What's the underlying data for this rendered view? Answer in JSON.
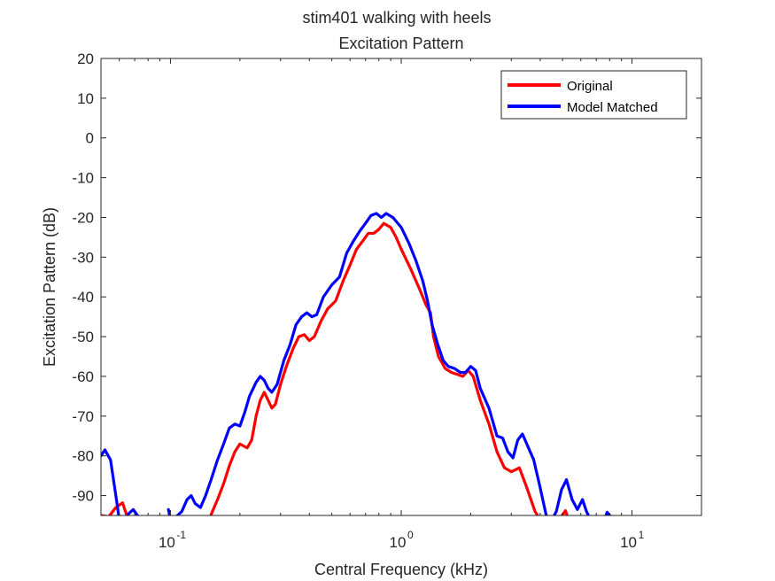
{
  "chart_data": {
    "type": "line",
    "title": "stim401 walking with heels",
    "subtitle": "Excitation Pattern",
    "xlabel": "Central Frequency (kHz)",
    "ylabel": "Excitation Pattern (dB)",
    "x_scale": "log",
    "xlim": [
      0.05,
      20
    ],
    "ylim": [
      -95,
      20
    ],
    "x_ticks": [
      {
        "value": 0.1,
        "base": "10",
        "exp": "-1"
      },
      {
        "value": 1,
        "base": "10",
        "exp": "0"
      },
      {
        "value": 10,
        "base": "10",
        "exp": "1"
      }
    ],
    "y_ticks": [
      20,
      10,
      0,
      -10,
      -20,
      -30,
      -40,
      -50,
      -60,
      -70,
      -80,
      -90
    ],
    "legend_position": "top-right",
    "grid": false,
    "series": [
      {
        "name": "Original",
        "color": "#ff0000",
        "segments": [
          [
            [
              0.05,
              -95.0
            ],
            [
              0.054,
              -95.3
            ],
            [
              0.058,
              -93.0
            ],
            [
              0.062,
              -91.8
            ],
            [
              0.066,
              -96.5
            ]
          ],
          [
            [
              0.145,
              -97.0
            ],
            [
              0.152,
              -94.0
            ],
            [
              0.16,
              -91.0
            ],
            [
              0.17,
              -87.0
            ],
            [
              0.18,
              -82.5
            ],
            [
              0.19,
              -79.0
            ],
            [
              0.2,
              -77.0
            ],
            [
              0.215,
              -78.0
            ],
            [
              0.225,
              -76.0
            ],
            [
              0.235,
              -70.0
            ],
            [
              0.245,
              -66.0
            ],
            [
              0.255,
              -64.0
            ],
            [
              0.265,
              -66.0
            ],
            [
              0.275,
              -68.0
            ],
            [
              0.285,
              -67.0
            ],
            [
              0.3,
              -62.0
            ],
            [
              0.32,
              -57.0
            ],
            [
              0.34,
              -53.0
            ],
            [
              0.36,
              -50.0
            ],
            [
              0.38,
              -49.5
            ],
            [
              0.4,
              -51.0
            ],
            [
              0.42,
              -50.0
            ],
            [
              0.45,
              -46.0
            ],
            [
              0.48,
              -43.0
            ],
            [
              0.52,
              -41.0
            ],
            [
              0.56,
              -36.0
            ],
            [
              0.6,
              -32.0
            ],
            [
              0.64,
              -28.0
            ],
            [
              0.68,
              -26.0
            ],
            [
              0.72,
              -24.0
            ],
            [
              0.76,
              -24.0
            ],
            [
              0.8,
              -23.0
            ],
            [
              0.84,
              -21.5
            ],
            [
              0.9,
              -22.5
            ],
            [
              0.95,
              -25.0
            ],
            [
              1.0,
              -28.0
            ],
            [
              1.1,
              -33.0
            ],
            [
              1.2,
              -38.0
            ],
            [
              1.28,
              -42.0
            ],
            [
              1.34,
              -44.0
            ],
            [
              1.38,
              -50.0
            ],
            [
              1.45,
              -55.0
            ],
            [
              1.55,
              -58.0
            ],
            [
              1.65,
              -59.0
            ],
            [
              1.75,
              -59.5
            ],
            [
              1.85,
              -60.0
            ],
            [
              1.95,
              -58.5
            ],
            [
              2.05,
              -60.0
            ],
            [
              2.2,
              -66.0
            ],
            [
              2.4,
              -72.0
            ],
            [
              2.6,
              -79.0
            ],
            [
              2.8,
              -83.0
            ],
            [
              3.0,
              -84.0
            ],
            [
              3.25,
              -83.0
            ],
            [
              3.5,
              -88.0
            ],
            [
              3.8,
              -94.0
            ],
            [
              4.0,
              -96.0
            ]
          ],
          [
            [
              4.9,
              -95.5
            ],
            [
              5.15,
              -93.8
            ],
            [
              5.3,
              -96.0
            ]
          ]
        ]
      },
      {
        "name": "Model Matched",
        "color": "#0000ff",
        "segments": [
          [
            [
              0.05,
              -80.0
            ],
            [
              0.052,
              -78.5
            ],
            [
              0.055,
              -81.0
            ],
            [
              0.058,
              -90.0
            ],
            [
              0.06,
              -96.0
            ]
          ],
          [
            [
              0.063,
              -96.5
            ],
            [
              0.066,
              -94.5
            ],
            [
              0.069,
              -93.5
            ],
            [
              0.073,
              -95.5
            ]
          ],
          [
            [
              0.098,
              -93.5
            ],
            [
              0.1,
              -96.0
            ],
            [
              0.105,
              -95.5
            ],
            [
              0.112,
              -94.0
            ],
            [
              0.118,
              -91.0
            ],
            [
              0.123,
              -90.0
            ],
            [
              0.128,
              -92.0
            ],
            [
              0.135,
              -93.0
            ],
            [
              0.142,
              -90.0
            ],
            [
              0.15,
              -86.0
            ],
            [
              0.16,
              -81.0
            ],
            [
              0.17,
              -77.0
            ],
            [
              0.18,
              -73.0
            ],
            [
              0.19,
              -72.0
            ],
            [
              0.2,
              -72.5
            ],
            [
              0.21,
              -69.0
            ],
            [
              0.22,
              -65.0
            ],
            [
              0.235,
              -61.5
            ],
            [
              0.245,
              -60.0
            ],
            [
              0.255,
              -61.0
            ],
            [
              0.265,
              -63.0
            ],
            [
              0.275,
              -64.0
            ],
            [
              0.29,
              -62.0
            ],
            [
              0.31,
              -56.0
            ],
            [
              0.33,
              -52.0
            ],
            [
              0.35,
              -47.0
            ],
            [
              0.37,
              -45.0
            ],
            [
              0.39,
              -44.0
            ],
            [
              0.41,
              -45.0
            ],
            [
              0.43,
              -44.5
            ],
            [
              0.46,
              -40.0
            ],
            [
              0.5,
              -37.0
            ],
            [
              0.54,
              -35.0
            ],
            [
              0.58,
              -29.0
            ],
            [
              0.62,
              -26.0
            ],
            [
              0.66,
              -23.5
            ],
            [
              0.7,
              -21.5
            ],
            [
              0.74,
              -19.5
            ],
            [
              0.78,
              -19.0
            ],
            [
              0.82,
              -20.0
            ],
            [
              0.86,
              -19.0
            ],
            [
              0.92,
              -20.0
            ],
            [
              1.0,
              -22.5
            ],
            [
              1.08,
              -26.5
            ],
            [
              1.16,
              -31.0
            ],
            [
              1.24,
              -36.0
            ],
            [
              1.3,
              -41.0
            ],
            [
              1.36,
              -47.0
            ],
            [
              1.44,
              -52.0
            ],
            [
              1.52,
              -56.0
            ],
            [
              1.6,
              -57.5
            ],
            [
              1.7,
              -58.0
            ],
            [
              1.8,
              -59.0
            ],
            [
              1.9,
              -59.0
            ],
            [
              2.0,
              -57.5
            ],
            [
              2.1,
              -58.5
            ],
            [
              2.2,
              -63.0
            ],
            [
              2.4,
              -68.0
            ],
            [
              2.6,
              -75.0
            ],
            [
              2.75,
              -75.5
            ],
            [
              2.9,
              -79.0
            ],
            [
              3.05,
              -80.5
            ],
            [
              3.2,
              -76.0
            ],
            [
              3.35,
              -74.5
            ],
            [
              3.5,
              -77.0
            ],
            [
              3.75,
              -81.0
            ],
            [
              4.0,
              -88.0
            ],
            [
              4.25,
              -95.0
            ],
            [
              4.5,
              -96.0
            ],
            [
              4.7,
              -94.0
            ],
            [
              4.95,
              -88.5
            ],
            [
              5.2,
              -86.0
            ],
            [
              5.5,
              -91.0
            ],
            [
              5.8,
              -93.5
            ],
            [
              6.1,
              -91.0
            ],
            [
              6.35,
              -94.0
            ],
            [
              6.6,
              -96.0
            ]
          ],
          [
            [
              7.6,
              -96.0
            ],
            [
              7.8,
              -94.2
            ],
            [
              8.1,
              -95.3
            ],
            [
              8.3,
              -96.5
            ]
          ]
        ]
      }
    ]
  }
}
